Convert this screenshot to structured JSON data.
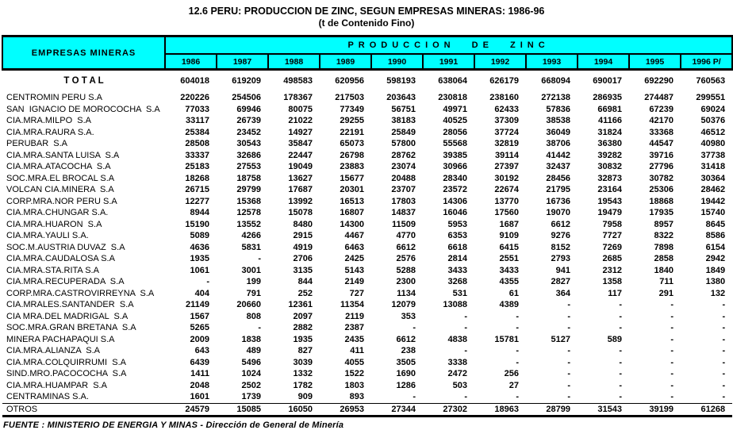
{
  "title_line1": "12.6  PERU: PRODUCCION DE ZINC, SEGUN EMPRESAS MINERAS: 1986-96",
  "title_line2": "(t de  Contenido Fino)",
  "header_bg_color": "#00ffff",
  "table": {
    "left_header": "EMPRESAS MINERAS",
    "right_header": "PRODUCCION DE ZINC",
    "years": [
      "1986",
      "1987",
      "1988",
      "1989",
      "1990",
      "1991",
      "1992",
      "1993",
      "1994",
      "1995",
      "1996 P/"
    ],
    "total_label": "T O T A L",
    "total_values": [
      "604018",
      "619209",
      "498583",
      "620956",
      "598193",
      "638064",
      "626179",
      "668094",
      "690017",
      "692290",
      "760563"
    ],
    "rows": [
      {
        "name": "CENTROMIN PERU S.A",
        "values": [
          "220226",
          "254506",
          "178367",
          "217503",
          "203643",
          "230818",
          "238160",
          "272138",
          "286935",
          "274487",
          "299551"
        ]
      },
      {
        "name": "SAN  IGNACIO DE MOROCOCHA  S.A",
        "values": [
          "77033",
          "69946",
          "80075",
          "77349",
          "56751",
          "49971",
          "62433",
          "57836",
          "66981",
          "67239",
          "69024"
        ]
      },
      {
        "name": "CIA.MRA.MILPO  S.A",
        "values": [
          "33117",
          "26739",
          "21022",
          "29255",
          "38183",
          "40525",
          "37309",
          "38538",
          "41166",
          "42170",
          "50376"
        ]
      },
      {
        "name": "CIA.MRA.RAURA S.A.",
        "values": [
          "25384",
          "23452",
          "14927",
          "22191",
          "25849",
          "28056",
          "37724",
          "36049",
          "31824",
          "33368",
          "46512"
        ]
      },
      {
        "name": "PERUBAR  S.A",
        "values": [
          "28508",
          "30543",
          "35847",
          "65073",
          "57800",
          "55568",
          "32819",
          "38706",
          "36380",
          "44547",
          "40980"
        ]
      },
      {
        "name": "CIA.MRA.SANTA LUISA  S.A",
        "values": [
          "33337",
          "32686",
          "22447",
          "26798",
          "28762",
          "39385",
          "39114",
          "41442",
          "39282",
          "39716",
          "37738"
        ]
      },
      {
        "name": "CIA.MRA.ATACOCHA  S.A",
        "values": [
          "25183",
          "27553",
          "19049",
          "23883",
          "23074",
          "30966",
          "27397",
          "32437",
          "30832",
          "27796",
          "31418"
        ]
      },
      {
        "name": "SOC.MRA.EL BROCAL S.A",
        "values": [
          "18268",
          "18758",
          "13627",
          "15677",
          "20488",
          "28340",
          "30192",
          "28456",
          "32873",
          "30782",
          "30364"
        ]
      },
      {
        "name": "VOLCAN CIA.MINERA  S.A",
        "values": [
          "26715",
          "29799",
          "17687",
          "20301",
          "23707",
          "23572",
          "22674",
          "21795",
          "23164",
          "25306",
          "28462"
        ]
      },
      {
        "name": "CORP.MRA.NOR PERU S.A",
        "values": [
          "12277",
          "15368",
          "13992",
          "16513",
          "17803",
          "14306",
          "13770",
          "16736",
          "19543",
          "18868",
          "19442"
        ]
      },
      {
        "name": "CIA.MRA.CHUNGAR S.A.",
        "values": [
          "8944",
          "12578",
          "15078",
          "16807",
          "14837",
          "16046",
          "17560",
          "19070",
          "19479",
          "17935",
          "15740"
        ]
      },
      {
        "name": "CIA.MRA.HUARON  S.A",
        "values": [
          "15190",
          "13552",
          "8480",
          "14300",
          "11509",
          "5953",
          "1687",
          "6612",
          "7958",
          "8957",
          "8645"
        ]
      },
      {
        "name": "CIA.MRA.YAULI S.A.",
        "values": [
          "5089",
          "4266",
          "2915",
          "4467",
          "4770",
          "6353",
          "9109",
          "9276",
          "7727",
          "8322",
          "8586"
        ]
      },
      {
        "name": "SOC.M.AUSTRIA DUVAZ  S.A",
        "values": [
          "4636",
          "5831",
          "4919",
          "6463",
          "6612",
          "6618",
          "6415",
          "8152",
          "7269",
          "7898",
          "6154"
        ]
      },
      {
        "name": "CIA.MRA.CAUDALOSA S.A",
        "values": [
          "1935",
          "-",
          "2706",
          "2425",
          "2576",
          "2814",
          "2551",
          "2793",
          "2685",
          "2858",
          "2942"
        ]
      },
      {
        "name": "CIA.MRA.STA.RITA S.A",
        "values": [
          "1061",
          "3001",
          "3135",
          "5143",
          "5288",
          "3433",
          "3433",
          "941",
          "2312",
          "1840",
          "1849"
        ]
      },
      {
        "name": "CIA.MRA.RECUPERADA  S.A",
        "values": [
          "-",
          "199",
          "844",
          "2149",
          "2300",
          "3268",
          "4355",
          "2827",
          "1358",
          "711",
          "1380"
        ]
      },
      {
        "name": "CORP.MRA.CASTROVIRREYNA  S.A",
        "values": [
          "404",
          "791",
          "252",
          "727",
          "1134",
          "531",
          "61",
          "364",
          "117",
          "291",
          "132"
        ]
      },
      {
        "name": "CIA.MRALES.SANTANDER  S.A",
        "values": [
          "21149",
          "20660",
          "12361",
          "11354",
          "12079",
          "13088",
          "4389",
          "-",
          "-",
          "-",
          "-"
        ]
      },
      {
        "name": "CIA MRA.DEL MADRIGAL  S.A",
        "values": [
          "1567",
          "808",
          "2097",
          "2119",
          "353",
          "-",
          "-",
          "-",
          "-",
          "-",
          "-"
        ]
      },
      {
        "name": "SOC.MRA.GRAN BRETANA  S.A",
        "values": [
          "5265",
          "-",
          "2882",
          "2387",
          "-",
          "-",
          "-",
          "-",
          "-",
          "-",
          "-"
        ]
      },
      {
        "name": "MINERA PACHAPAQUI S.A",
        "values": [
          "2009",
          "1838",
          "1935",
          "2435",
          "6612",
          "4838",
          "15781",
          "5127",
          "589",
          "-",
          "-"
        ]
      },
      {
        "name": "CIA.MRA.ALIANZA  S.A",
        "values": [
          "643",
          "489",
          "827",
          "411",
          "238",
          "-",
          "-",
          "-",
          "-",
          "-",
          "-"
        ]
      },
      {
        "name": "CIA.MRA.COLQUIRRUMI  S.A",
        "values": [
          "6439",
          "5496",
          "3039",
          "4055",
          "3505",
          "3338",
          "-",
          "-",
          "-",
          "-",
          "-"
        ]
      },
      {
        "name": "SIND.MRO.PACOCOCHA  S.A",
        "values": [
          "1411",
          "1024",
          "1332",
          "1522",
          "1690",
          "2472",
          "256",
          "-",
          "-",
          "-",
          "-"
        ]
      },
      {
        "name": "CIA.MRA.HUAMPAR  S.A",
        "values": [
          "2048",
          "2502",
          "1782",
          "1803",
          "1286",
          "503",
          "27",
          "-",
          "-",
          "-",
          "-"
        ]
      },
      {
        "name": "CENTRAMINAS S.A.",
        "values": [
          "1601",
          "1739",
          "909",
          "893",
          "-",
          "-",
          "-",
          "-",
          "-",
          "-",
          "-"
        ]
      },
      {
        "name": "OTROS",
        "values": [
          "24579",
          "15085",
          "16050",
          "26953",
          "27344",
          "27302",
          "18963",
          "28799",
          "31543",
          "39199",
          "61268"
        ]
      }
    ]
  },
  "footer": "FUENTE : MINISTERIO DE ENERGIA Y MINAS - Dirección de General de Minería"
}
